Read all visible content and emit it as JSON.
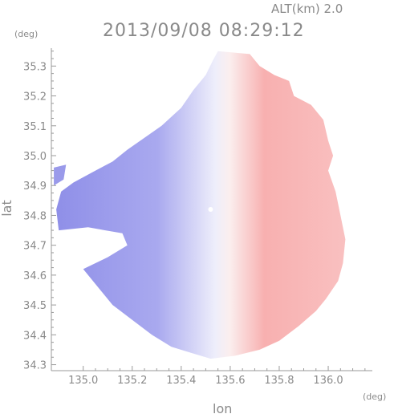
{
  "header": {
    "title": "2013/09/08 08:29:12",
    "altitude": "ALT(km) 2.0",
    "y_unit": "(deg)",
    "x_unit": "(deg)"
  },
  "chart_data": {
    "type": "heatmap",
    "title": "2013/09/08 08:29:12",
    "xlabel": "lon",
    "ylabel": "lat",
    "xlim": [
      134.87,
      136.18
    ],
    "ylim": [
      34.28,
      35.36
    ],
    "x_ticks": [
      "135.0",
      "135.2",
      "135.4",
      "135.6",
      "135.8",
      "136.0"
    ],
    "y_ticks": [
      "34.3",
      "34.4",
      "34.5",
      "34.6",
      "34.7",
      "34.8",
      "34.9",
      "35.0",
      "35.1",
      "35.2",
      "35.3"
    ],
    "grid": false,
    "colors": {
      "approaching": "#8f8fe8",
      "neutral": "#f2f2fb",
      "receding": "#f7a8a8",
      "axis": "#999999"
    },
    "radar_center": {
      "lon": 135.52,
      "lat": 34.82
    }
  }
}
